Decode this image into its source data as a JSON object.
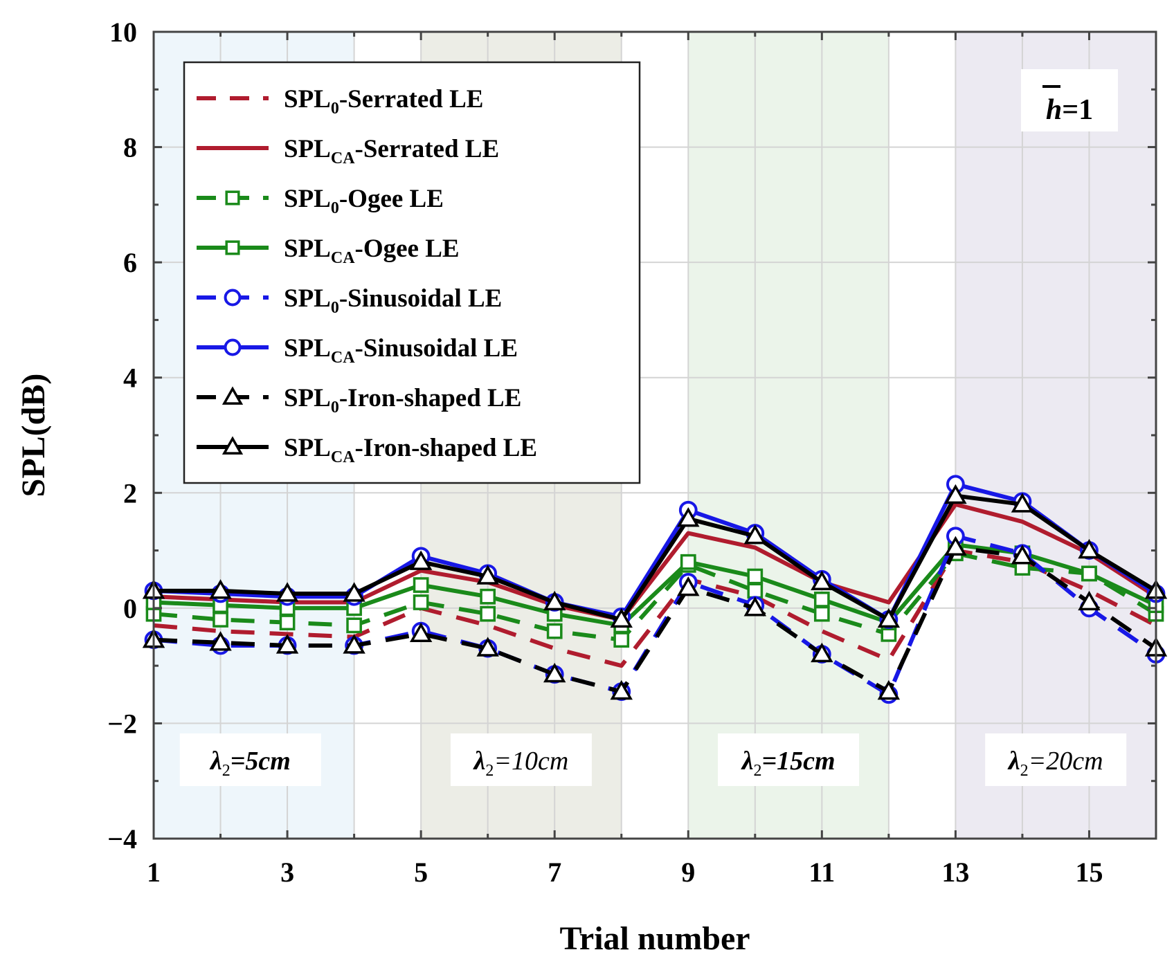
{
  "chart_data": {
    "type": "line",
    "title": "",
    "xlabel": "Trial number",
    "ylabel": "SPL(dB)",
    "xlim": [
      1,
      16
    ],
    "ylim": [
      -4,
      10
    ],
    "xticks": [
      1,
      3,
      5,
      7,
      9,
      11,
      13,
      15
    ],
    "yticks": [
      10,
      8,
      6,
      4,
      2,
      0,
      -2,
      -4
    ],
    "ytick_labels": [
      "10",
      "8",
      "6",
      "4",
      "2",
      "0",
      "−2",
      "−4"
    ],
    "grid": true,
    "x": [
      1,
      2,
      3,
      4,
      5,
      6,
      7,
      8,
      9,
      10,
      11,
      12,
      13,
      14,
      15,
      16
    ],
    "annotation": {
      "symbol": "h",
      "value": "=1"
    },
    "regions": [
      {
        "from": 1,
        "to": 4,
        "color": "#eef6fb",
        "label_main": "λ",
        "label_sub": "2",
        "label_rest": "=5cm"
      },
      {
        "from": 5,
        "to": 8,
        "color": "#ecede6",
        "label_main": "λ",
        "label_sub": "2",
        "label_rest": "=10cm"
      },
      {
        "from": 9,
        "to": 12,
        "color": "#ebf4ea",
        "label_main": "λ",
        "label_sub": "2",
        "label_rest": "=15cm"
      },
      {
        "from": 13,
        "to": 16,
        "color": "#eceaf2",
        "label_main": "λ",
        "label_sub": "2",
        "label_rest": "=20cm"
      }
    ],
    "series": [
      {
        "name": "SPL0-Serrated LE",
        "label_pre": "SPL",
        "label_sub": "0",
        "label_post": "-Serrated LE",
        "color": "#b01c2e",
        "dash": "dashed",
        "marker": "none",
        "values": [
          -0.3,
          -0.4,
          -0.45,
          -0.5,
          0.0,
          -0.3,
          -0.7,
          -1.0,
          0.5,
          0.2,
          -0.4,
          -0.9,
          1.0,
          0.8,
          0.3,
          -0.3
        ]
      },
      {
        "name": "SPLCA-Serrated LE",
        "label_pre": "SPL",
        "label_sub": "CA",
        "label_post": "-Serrated LE",
        "color": "#b01c2e",
        "dash": "solid",
        "marker": "none",
        "values": [
          0.2,
          0.15,
          0.1,
          0.1,
          0.65,
          0.45,
          0.05,
          -0.2,
          1.3,
          1.05,
          0.45,
          0.1,
          1.8,
          1.5,
          0.95,
          0.2
        ]
      },
      {
        "name": "SPL0-Ogee LE",
        "label_pre": "SPL",
        "label_sub": "0",
        "label_post": "-Ogee LE",
        "color": "#1a8a1a",
        "dash": "dashed",
        "marker": "square",
        "values": [
          -0.1,
          -0.2,
          -0.25,
          -0.3,
          0.1,
          -0.1,
          -0.4,
          -0.55,
          0.75,
          0.3,
          -0.1,
          -0.45,
          0.95,
          0.7,
          0.6,
          -0.1
        ]
      },
      {
        "name": "SPLCA-Ogee LE",
        "label_pre": "SPL",
        "label_sub": "CA",
        "label_post": "-Ogee LE",
        "color": "#1a8a1a",
        "dash": "solid",
        "marker": "square",
        "values": [
          0.1,
          0.05,
          0.0,
          0.0,
          0.4,
          0.2,
          -0.1,
          -0.3,
          0.8,
          0.55,
          0.15,
          -0.25,
          1.1,
          0.95,
          0.6,
          0.05
        ]
      },
      {
        "name": "SPL0-Sinusoidal LE",
        "label_pre": "SPL",
        "label_sub": "0",
        "label_post": "-Sinusoidal LE",
        "color": "#1818e6",
        "dash": "dashed",
        "marker": "circle",
        "values": [
          -0.55,
          -0.65,
          -0.65,
          -0.65,
          -0.4,
          -0.7,
          -1.15,
          -1.45,
          0.45,
          0.05,
          -0.8,
          -1.5,
          1.25,
          0.95,
          0.0,
          -0.8
        ]
      },
      {
        "name": "SPLCA-Sinusoidal LE",
        "label_pre": "SPL",
        "label_sub": "CA",
        "label_post": "-Sinusoidal LE",
        "color": "#1818e6",
        "dash": "solid",
        "marker": "circle",
        "values": [
          0.3,
          0.25,
          0.2,
          0.2,
          0.9,
          0.6,
          0.1,
          -0.15,
          1.7,
          1.3,
          0.5,
          -0.2,
          2.15,
          1.85,
          1.0,
          0.25
        ]
      },
      {
        "name": "SPL0-Iron-shaped LE",
        "label_pre": "SPL",
        "label_sub": "0",
        "label_post": "-Iron-shaped LE",
        "color": "#000000",
        "dash": "dashed",
        "marker": "triangle",
        "values": [
          -0.55,
          -0.6,
          -0.65,
          -0.65,
          -0.45,
          -0.7,
          -1.15,
          -1.45,
          0.35,
          0.0,
          -0.8,
          -1.45,
          1.05,
          0.9,
          0.1,
          -0.7
        ]
      },
      {
        "name": "SPLCA-Iron-shaped LE",
        "label_pre": "SPL",
        "label_sub": "CA",
        "label_post": "-Iron-shaped LE",
        "color": "#000000",
        "dash": "solid",
        "marker": "triangle",
        "values": [
          0.3,
          0.3,
          0.25,
          0.25,
          0.8,
          0.55,
          0.1,
          -0.2,
          1.55,
          1.25,
          0.45,
          -0.2,
          1.95,
          1.8,
          1.0,
          0.3
        ]
      }
    ]
  }
}
